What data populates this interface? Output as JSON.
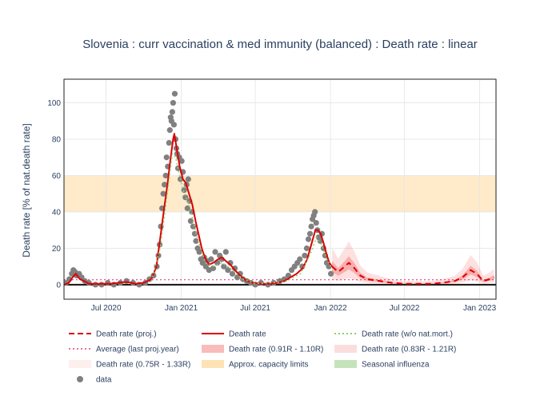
{
  "chart_data": {
    "type": "line",
    "title": "Slovenia : curr vaccination & med immunity (balanced) : Death rate : linear",
    "ylabel": "Death rate [% of nat.death rate]",
    "xlabel": "",
    "x_range": [
      "2020-03-20",
      "2023-02-10"
    ],
    "ylim": [
      -8,
      113
    ],
    "y_ticks": [
      0,
      20,
      40,
      60,
      80,
      100
    ],
    "x_ticks": [
      {
        "date": "2020-07-01",
        "label": "Jul 2020"
      },
      {
        "date": "2021-01-01",
        "label": "Jan 2021"
      },
      {
        "date": "2021-07-01",
        "label": "Jul 2021"
      },
      {
        "date": "2022-01-01",
        "label": "Jan 2022"
      },
      {
        "date": "2022-07-01",
        "label": "Jul 2022"
      },
      {
        "date": "2023-01-01",
        "label": "Jan 2023"
      }
    ],
    "capacity_band": [
      40,
      60
    ],
    "average_last_proj_year": 2.7,
    "grid": true,
    "legend_position": "bottom",
    "series": [
      {
        "name": "Death rate",
        "color": "#dd0000",
        "style": "solid",
        "points": [
          [
            "2020-03-20",
            0
          ],
          [
            "2020-04-01",
            1
          ],
          [
            "2020-04-10",
            4
          ],
          [
            "2020-04-18",
            6
          ],
          [
            "2020-04-28",
            3
          ],
          [
            "2020-05-08",
            2
          ],
          [
            "2020-05-20",
            0.5
          ],
          [
            "2020-06-15",
            0.5
          ],
          [
            "2020-07-10",
            0.5
          ],
          [
            "2020-08-01",
            1
          ],
          [
            "2020-08-20",
            1.5
          ],
          [
            "2020-09-10",
            0.5
          ],
          [
            "2020-10-01",
            1
          ],
          [
            "2020-10-20",
            3
          ],
          [
            "2020-11-01",
            10
          ],
          [
            "2020-11-10",
            25
          ],
          [
            "2020-11-20",
            42
          ],
          [
            "2020-11-28",
            55
          ],
          [
            "2020-12-05",
            68
          ],
          [
            "2020-12-12",
            80
          ],
          [
            "2020-12-15",
            83
          ],
          [
            "2020-12-20",
            76
          ],
          [
            "2020-12-28",
            65
          ],
          [
            "2021-01-05",
            58
          ],
          [
            "2021-01-12",
            56
          ],
          [
            "2021-01-20",
            50
          ],
          [
            "2021-01-28",
            44
          ],
          [
            "2021-02-05",
            35
          ],
          [
            "2021-02-12",
            28
          ],
          [
            "2021-02-20",
            20
          ],
          [
            "2021-03-01",
            14
          ],
          [
            "2021-03-10",
            11
          ],
          [
            "2021-03-20",
            12
          ],
          [
            "2021-04-01",
            14
          ],
          [
            "2021-04-10",
            15
          ],
          [
            "2021-04-20",
            13
          ],
          [
            "2021-05-01",
            11
          ],
          [
            "2021-05-12",
            8
          ],
          [
            "2021-05-25",
            5
          ],
          [
            "2021-06-10",
            2
          ],
          [
            "2021-06-25",
            1
          ],
          [
            "2021-07-15",
            0.5
          ],
          [
            "2021-08-05",
            0.5
          ],
          [
            "2021-08-25",
            1
          ],
          [
            "2021-09-10",
            2
          ],
          [
            "2021-09-25",
            4
          ],
          [
            "2021-10-10",
            6
          ],
          [
            "2021-10-25",
            9
          ],
          [
            "2021-11-05",
            14
          ],
          [
            "2021-11-15",
            22
          ],
          [
            "2021-11-25",
            30
          ],
          [
            "2021-12-01",
            30
          ],
          [
            "2021-12-08",
            28
          ],
          [
            "2021-12-15",
            23
          ],
          [
            "2021-12-22",
            17
          ],
          [
            "2021-12-29",
            12
          ],
          [
            "2022-01-05",
            10
          ]
        ]
      },
      {
        "name": "Death rate (proj.)",
        "color": "#dd0000",
        "style": "dash",
        "points": [
          [
            "2022-01-05",
            10
          ],
          [
            "2022-01-20",
            7
          ],
          [
            "2022-02-05",
            10
          ],
          [
            "2022-02-15",
            12
          ],
          [
            "2022-03-01",
            9
          ],
          [
            "2022-03-15",
            5
          ],
          [
            "2022-04-01",
            3
          ],
          [
            "2022-05-01",
            2
          ],
          [
            "2022-06-01",
            1
          ],
          [
            "2022-07-01",
            0.5
          ],
          [
            "2022-08-01",
            0.5
          ],
          [
            "2022-09-01",
            0.5
          ],
          [
            "2022-10-01",
            1
          ],
          [
            "2022-11-01",
            2
          ],
          [
            "2022-11-20",
            4
          ],
          [
            "2022-12-10",
            8
          ],
          [
            "2022-12-25",
            6
          ],
          [
            "2023-01-10",
            2
          ],
          [
            "2023-01-25",
            3
          ],
          [
            "2023-02-05",
            4
          ]
        ]
      },
      {
        "name": "Death rate (w/o nat.mort.)",
        "color": "#90cf70",
        "style": "dot",
        "points": [
          [
            "2020-10-20",
            2
          ],
          [
            "2020-11-10",
            20
          ],
          [
            "2020-11-25",
            45
          ],
          [
            "2020-12-10",
            72
          ],
          [
            "2020-12-18",
            70
          ],
          [
            "2021-01-05",
            52
          ],
          [
            "2021-01-20",
            44
          ],
          [
            "2021-02-10",
            25
          ],
          [
            "2021-03-01",
            12
          ],
          [
            "2021-03-20",
            10
          ],
          [
            "2021-04-10",
            12
          ],
          [
            "2021-05-01",
            9
          ],
          [
            "2021-06-01",
            3
          ],
          [
            "2021-07-01",
            0.5
          ],
          [
            "2021-09-10",
            1.5
          ],
          [
            "2021-10-20",
            6
          ],
          [
            "2021-11-15",
            18
          ],
          [
            "2021-11-28",
            26
          ],
          [
            "2021-12-10",
            22
          ],
          [
            "2021-12-25",
            13
          ],
          [
            "2022-01-05",
            9
          ]
        ]
      }
    ],
    "average_series_name": "Average (last proj.year)",
    "band_series": [
      {
        "name": "Death rate (0.91R - 1.10R)",
        "color": "rgba(240,60,60,0.30)"
      },
      {
        "name": "Death rate (0.83R - 1.21R)",
        "color": "rgba(240,60,60,0.16)"
      },
      {
        "name": "Death rate (0.75R - 1.33R)",
        "color": "rgba(240,60,60,0.08)"
      }
    ],
    "capacity_series_name": "Approx. capacity limits",
    "influenza_series_name": "Seasonal influenza",
    "data_series_name": "data",
    "data_points": [
      [
        "2020-03-25",
        1
      ],
      [
        "2020-04-02",
        3
      ],
      [
        "2020-04-08",
        6
      ],
      [
        "2020-04-12",
        8
      ],
      [
        "2020-04-16",
        7
      ],
      [
        "2020-04-20",
        5
      ],
      [
        "2020-04-26",
        6
      ],
      [
        "2020-05-02",
        4
      ],
      [
        "2020-05-10",
        2
      ],
      [
        "2020-05-20",
        1
      ],
      [
        "2020-06-05",
        0
      ],
      [
        "2020-06-20",
        0
      ],
      [
        "2020-07-05",
        1
      ],
      [
        "2020-07-20",
        0
      ],
      [
        "2020-08-05",
        1
      ],
      [
        "2020-08-20",
        2
      ],
      [
        "2020-09-05",
        1
      ],
      [
        "2020-09-20",
        0
      ],
      [
        "2020-10-05",
        1
      ],
      [
        "2020-10-15",
        3
      ],
      [
        "2020-10-25",
        5
      ],
      [
        "2020-11-02",
        10
      ],
      [
        "2020-11-06",
        16
      ],
      [
        "2020-11-09",
        22
      ],
      [
        "2020-11-12",
        32
      ],
      [
        "2020-11-15",
        42
      ],
      [
        "2020-11-18",
        50
      ],
      [
        "2020-11-21",
        55
      ],
      [
        "2020-11-24",
        60
      ],
      [
        "2020-11-26",
        70
      ],
      [
        "2020-11-29",
        65
      ],
      [
        "2020-12-02",
        78
      ],
      [
        "2020-12-04",
        85
      ],
      [
        "2020-12-06",
        92
      ],
      [
        "2020-12-08",
        90
      ],
      [
        "2020-12-10",
        95
      ],
      [
        "2020-12-12",
        100
      ],
      [
        "2020-12-14",
        88
      ],
      [
        "2020-12-16",
        105
      ],
      [
        "2020-12-18",
        80
      ],
      [
        "2020-12-20",
        75
      ],
      [
        "2020-12-22",
        72
      ],
      [
        "2020-12-24",
        64
      ],
      [
        "2020-12-27",
        70
      ],
      [
        "2020-12-30",
        58
      ],
      [
        "2021-01-02",
        68
      ],
      [
        "2021-01-05",
        62
      ],
      [
        "2021-01-08",
        52
      ],
      [
        "2021-01-11",
        48
      ],
      [
        "2021-01-14",
        55
      ],
      [
        "2021-01-16",
        42
      ],
      [
        "2021-01-18",
        58
      ],
      [
        "2021-01-21",
        46
      ],
      [
        "2021-01-24",
        35
      ],
      [
        "2021-01-27",
        40
      ],
      [
        "2021-01-30",
        32
      ],
      [
        "2021-02-03",
        28
      ],
      [
        "2021-02-06",
        24
      ],
      [
        "2021-02-10",
        20
      ],
      [
        "2021-02-14",
        18
      ],
      [
        "2021-02-18",
        14
      ],
      [
        "2021-02-22",
        12
      ],
      [
        "2021-02-26",
        15
      ],
      [
        "2021-03-02",
        10
      ],
      [
        "2021-03-06",
        13
      ],
      [
        "2021-03-10",
        8
      ],
      [
        "2021-03-15",
        14
      ],
      [
        "2021-03-20",
        9
      ],
      [
        "2021-03-25",
        18
      ],
      [
        "2021-03-30",
        12
      ],
      [
        "2021-04-05",
        16
      ],
      [
        "2021-04-10",
        14
      ],
      [
        "2021-04-15",
        10
      ],
      [
        "2021-04-20",
        18
      ],
      [
        "2021-04-25",
        8
      ],
      [
        "2021-05-01",
        12
      ],
      [
        "2021-05-06",
        6
      ],
      [
        "2021-05-12",
        9
      ],
      [
        "2021-05-18",
        4
      ],
      [
        "2021-05-25",
        6
      ],
      [
        "2021-06-01",
        3
      ],
      [
        "2021-06-10",
        2
      ],
      [
        "2021-06-20",
        1
      ],
      [
        "2021-07-01",
        0
      ],
      [
        "2021-07-15",
        1
      ],
      [
        "2021-08-01",
        0
      ],
      [
        "2021-08-15",
        1
      ],
      [
        "2021-08-30",
        2
      ],
      [
        "2021-09-10",
        3
      ],
      [
        "2021-09-20",
        5
      ],
      [
        "2021-09-28",
        8
      ],
      [
        "2021-10-05",
        10
      ],
      [
        "2021-10-12",
        12
      ],
      [
        "2021-10-18",
        14
      ],
      [
        "2021-10-24",
        10
      ],
      [
        "2021-10-30",
        16
      ],
      [
        "2021-11-04",
        20
      ],
      [
        "2021-11-08",
        25
      ],
      [
        "2021-11-12",
        28
      ],
      [
        "2021-11-15",
        32
      ],
      [
        "2021-11-18",
        36
      ],
      [
        "2021-11-21",
        38
      ],
      [
        "2021-11-24",
        40
      ],
      [
        "2021-11-27",
        34
      ],
      [
        "2021-11-30",
        30
      ],
      [
        "2021-12-03",
        26
      ],
      [
        "2021-12-07",
        24
      ],
      [
        "2021-12-11",
        28
      ],
      [
        "2021-12-15",
        20
      ],
      [
        "2021-12-19",
        16
      ],
      [
        "2021-12-23",
        12
      ],
      [
        "2021-12-28",
        10
      ],
      [
        "2022-01-02",
        6
      ]
    ]
  }
}
